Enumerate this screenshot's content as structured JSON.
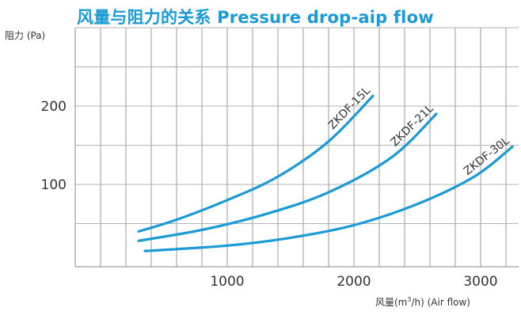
{
  "chart_data": {
    "type": "line",
    "title": "风量与阻力的关系 Pressure drop-aip flow",
    "ylabel": "阻力 (Pa)",
    "xlabel_main": "风量(m",
    "xlabel_sup": "3",
    "xlabel_tail": "/h)  (Air flow)",
    "xlim": [
      -200,
      3300
    ],
    "ylim": [
      -5,
      300
    ],
    "x_ticks": [
      1000,
      2000,
      3000
    ],
    "y_ticks": [
      100,
      200
    ],
    "grid": true,
    "series": [
      {
        "name": "ZKDF-15L",
        "x": [
          300,
          600,
          1000,
          1400,
          1800,
          2150
        ],
        "y": [
          40,
          55,
          80,
          110,
          155,
          213
        ]
      },
      {
        "name": "ZKDF-21L",
        "x": [
          300,
          800,
          1300,
          1800,
          2300,
          2650
        ],
        "y": [
          28,
          42,
          62,
          90,
          135,
          190
        ]
      },
      {
        "name": "ZKDF-30L",
        "x": [
          350,
          1000,
          1500,
          2000,
          2500,
          2950,
          3250
        ],
        "y": [
          15,
          22,
          32,
          48,
          75,
          110,
          148
        ]
      }
    ]
  }
}
